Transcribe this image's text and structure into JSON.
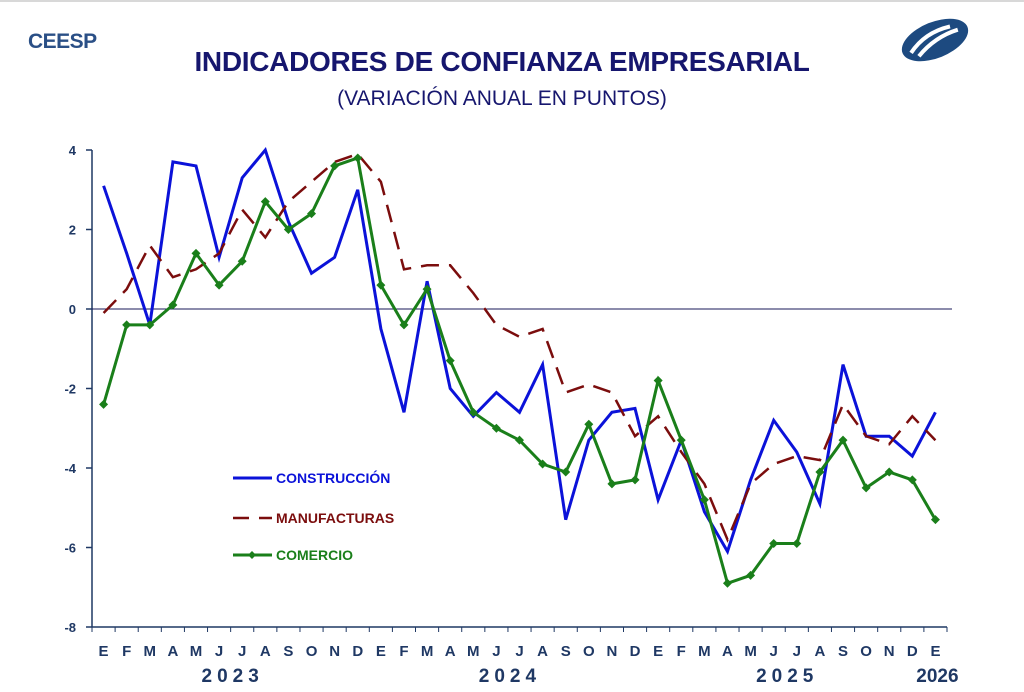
{
  "header": {
    "brand": "CEESP",
    "logo_icon": "ceesp-swirl-logo",
    "title": "INDICADORES DE CONFIANZA EMPRESARIAL",
    "subtitle": "(VARIACIÓN ANUAL EN PUNTOS)"
  },
  "colors": {
    "construccion": "#0b12d9",
    "manufacturas": "#7b0d0d",
    "comercio": "#1a7f1a",
    "axis": "#1f3864",
    "title": "#16166e"
  },
  "chart_data": {
    "type": "line",
    "title": "INDICADORES DE CONFIANZA EMPRESARIAL",
    "subtitle": "(VARIACIÓN ANUAL EN PUNTOS)",
    "xlabel": "",
    "ylabel": "",
    "ylim": [
      -8,
      4
    ],
    "yticks": [
      4,
      2,
      0,
      -2,
      -4,
      -6,
      -8
    ],
    "ytick_labels": [
      "4",
      "2",
      "0",
      "-2",
      "-4",
      "-6",
      "-8"
    ],
    "categories": [
      "E",
      "F",
      "M",
      "A",
      "M",
      "J",
      "J",
      "A",
      "S",
      "O",
      "N",
      "D",
      "E",
      "F",
      "M",
      "A",
      "M",
      "J",
      "J",
      "A",
      "S",
      "O",
      "N",
      "D",
      "E",
      "F",
      "M",
      "A",
      "M",
      "J",
      "J",
      "A",
      "S",
      "O",
      "N",
      "D",
      "E"
    ],
    "years": [
      {
        "label": "2023",
        "start": 0,
        "end": 11
      },
      {
        "label": "2024",
        "start": 12,
        "end": 23
      },
      {
        "label": "2025",
        "start": 24,
        "end": 35
      },
      {
        "label": "2026",
        "start": 36,
        "end": 36
      }
    ],
    "grid": false,
    "zero_line": true,
    "legend_position": "lower-left",
    "series": [
      {
        "name": "CONSTRUCCIÓN",
        "style": "solid",
        "values": [
          3.1,
          1.4,
          -0.4,
          3.7,
          3.6,
          1.3,
          3.3,
          4.0,
          2.2,
          0.9,
          1.3,
          3.0,
          -0.5,
          -2.6,
          0.7,
          -2.0,
          -2.7,
          -2.1,
          -2.6,
          -1.4,
          -5.3,
          -3.3,
          -2.6,
          -2.5,
          -4.8,
          -3.3,
          -5.1,
          -6.1,
          -4.3,
          -2.8,
          -3.6,
          -4.9,
          -1.4,
          -3.2,
          -3.2,
          -3.7,
          -2.6
        ]
      },
      {
        "name": "MANUFACTURAS",
        "style": "dashed",
        "values": [
          -0.1,
          0.5,
          1.6,
          0.8,
          1.0,
          1.4,
          2.5,
          1.8,
          2.7,
          3.2,
          3.7,
          3.9,
          3.2,
          1.0,
          1.1,
          1.1,
          0.4,
          -0.4,
          -0.7,
          -0.5,
          -2.1,
          -1.9,
          -2.1,
          -3.2,
          -2.7,
          -3.6,
          -4.4,
          -5.8,
          -4.4,
          -3.9,
          -3.7,
          -3.8,
          -2.4,
          -3.2,
          -3.4,
          -2.7,
          -3.3
        ]
      },
      {
        "name": "COMERCIO",
        "style": "solid-diamond",
        "values": [
          -2.4,
          -0.4,
          -0.4,
          0.1,
          1.4,
          0.6,
          1.2,
          2.7,
          2.0,
          2.4,
          3.6,
          3.8,
          0.6,
          -0.4,
          0.5,
          -1.3,
          -2.6,
          -3.0,
          -3.3,
          -3.9,
          -4.1,
          -2.9,
          -4.4,
          -4.3,
          -1.8,
          -3.3,
          -4.8,
          -6.9,
          -6.7,
          -5.9,
          -5.9,
          -4.1,
          -3.3,
          -4.5,
          -4.1,
          -4.3,
          -5.3
        ]
      }
    ]
  }
}
